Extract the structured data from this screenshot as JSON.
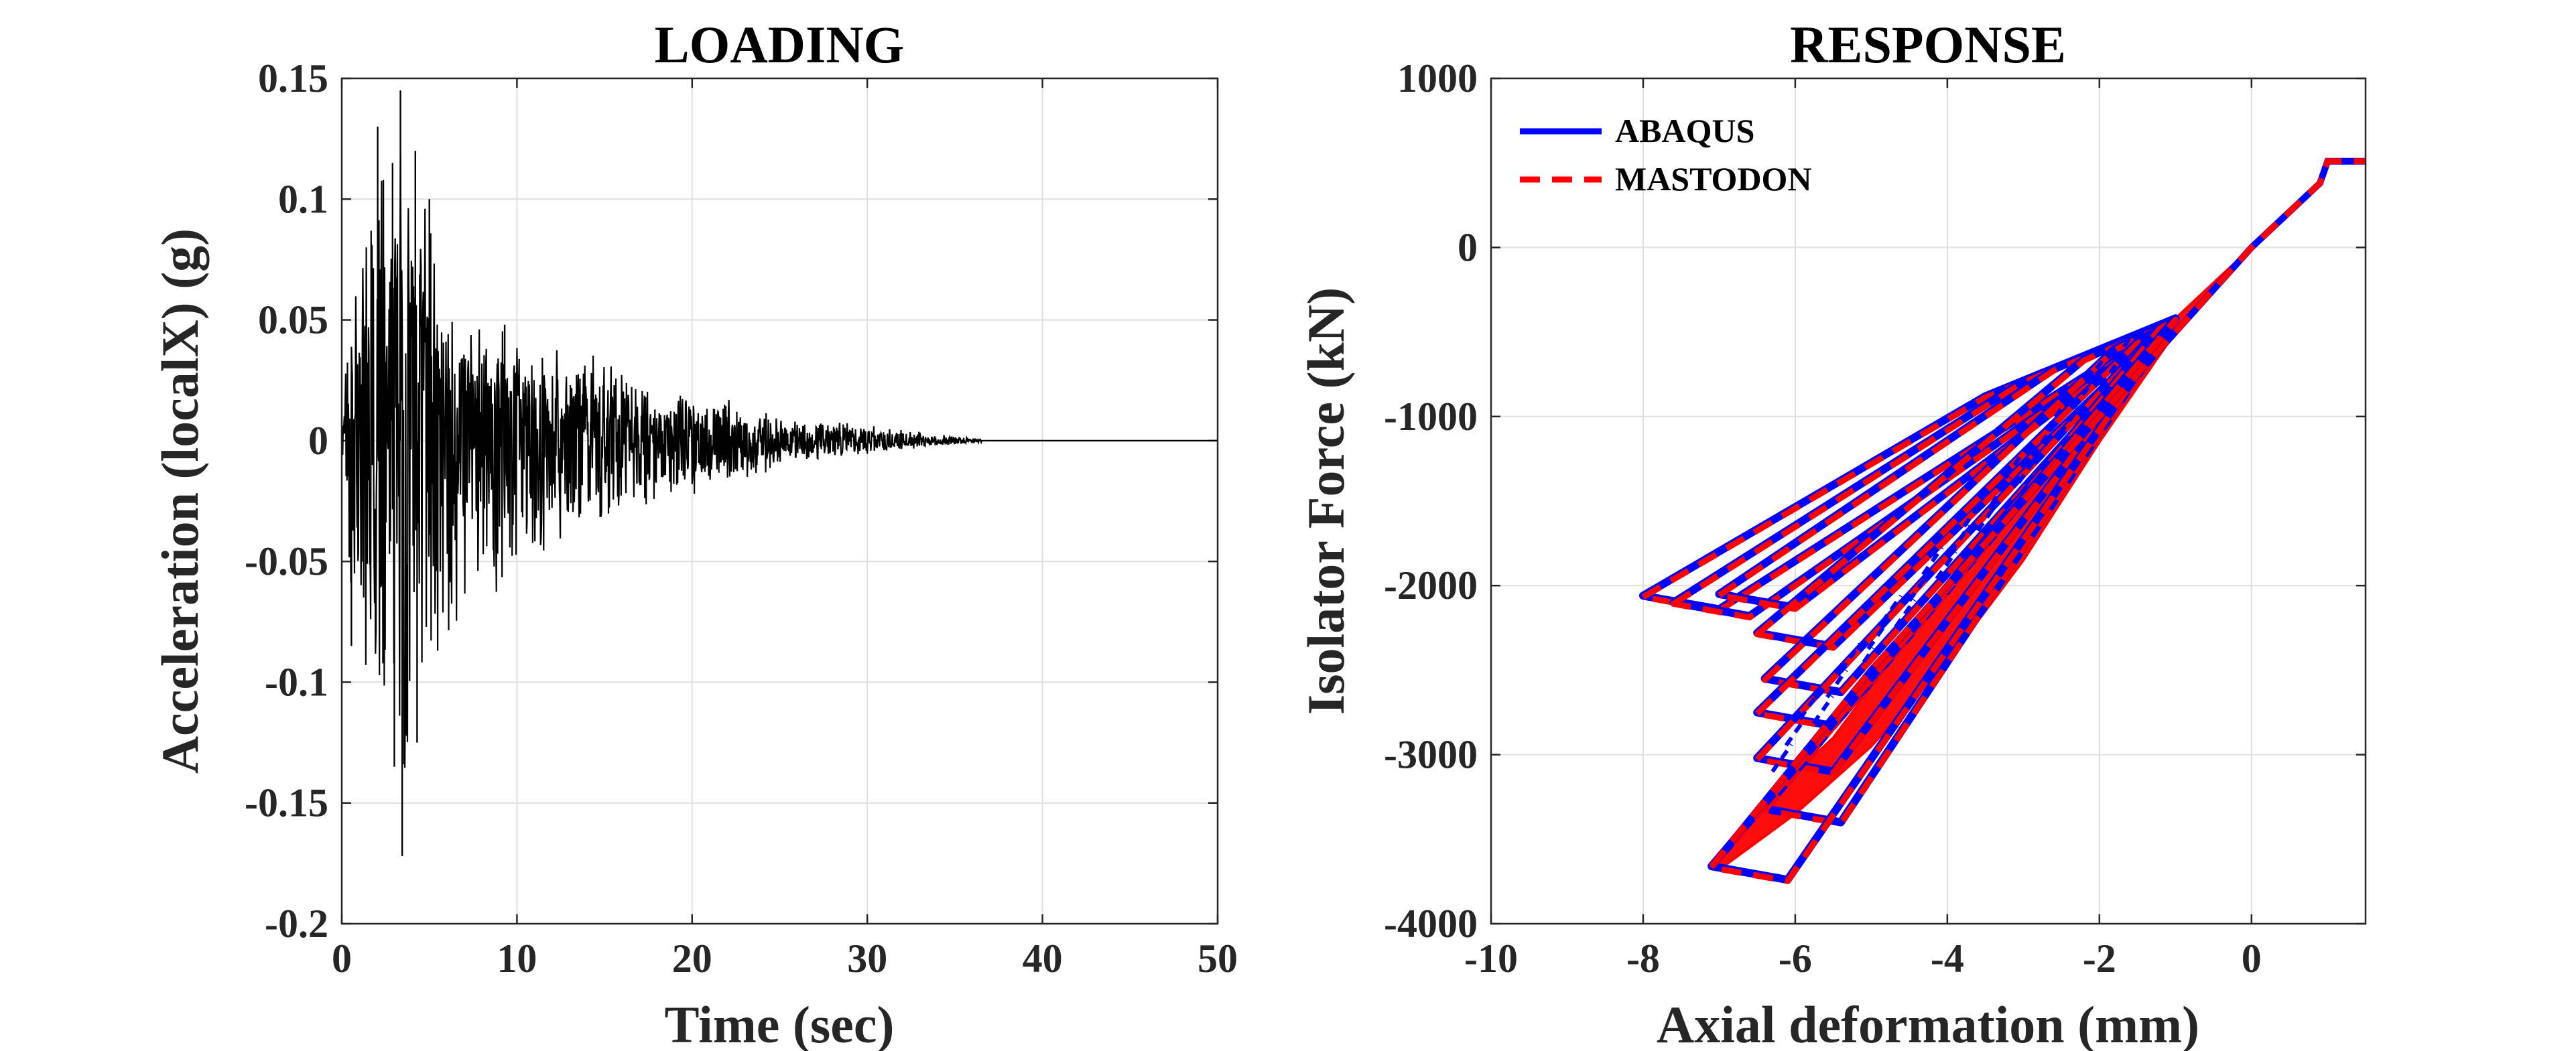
{
  "chart_data": [
    {
      "type": "line",
      "title": "LOADING",
      "xlabel": "Time (sec)",
      "ylabel": "Acceleration (localX) (g)",
      "xlim": [
        0,
        50
      ],
      "ylim": [
        -0.2,
        0.15
      ],
      "xticks": [
        0,
        10,
        20,
        30,
        40,
        50
      ],
      "xtick_labels": [
        "0",
        "10",
        "20",
        "30",
        "40",
        "50"
      ],
      "yticks": [
        -0.2,
        -0.15,
        -0.1,
        -0.05,
        0,
        0.05,
        0.1,
        0.15
      ],
      "ytick_labels": [
        "-0.2",
        "-0.15",
        "-0.1",
        "-0.05",
        "0",
        "0.05",
        "0.1",
        "0.15"
      ],
      "grid": true,
      "line_color": "#000000",
      "envelope": {
        "t": [
          0,
          0.5,
          1,
          2,
          3,
          3.5,
          4,
          5,
          6,
          8,
          10,
          12,
          15,
          18,
          20,
          22,
          25,
          28,
          30,
          33,
          36,
          50
        ],
        "max": [
          0.0,
          0.07,
          0.07,
          0.13,
          0.115,
          0.145,
          0.12,
          0.1,
          0.06,
          0.05,
          0.047,
          0.04,
          0.035,
          0.02,
          0.02,
          0.018,
          0.01,
          0.008,
          0.007,
          0.004,
          0.001,
          0.0
        ],
        "min": [
          0.0,
          -0.085,
          -0.085,
          -0.11,
          -0.135,
          -0.172,
          -0.125,
          -0.1,
          -0.085,
          -0.07,
          -0.065,
          -0.045,
          -0.04,
          -0.03,
          -0.025,
          -0.02,
          -0.012,
          -0.008,
          -0.006,
          -0.003,
          -0.001,
          0.0
        ]
      }
    },
    {
      "type": "line",
      "title": "RESPONSE",
      "xlabel": "Axial deformation (mm)",
      "ylabel": "Isolator Force (kN)",
      "xlim": [
        -10,
        1.5
      ],
      "ylim": [
        -4000,
        1000
      ],
      "xticks": [
        -10,
        -8,
        -6,
        -4,
        -2,
        0
      ],
      "xtick_labels": [
        "-10",
        "-8",
        "-6",
        "-4",
        "-2",
        "0"
      ],
      "yticks": [
        -4000,
        -3000,
        -2000,
        -1000,
        0,
        1000
      ],
      "ytick_labels": [
        "-4000",
        "-3000",
        "-2000",
        "-1000",
        "0",
        "1000"
      ],
      "grid": true,
      "legend_position": "top-left",
      "series": [
        {
          "name": "ABAQUS",
          "color": "#0000ff",
          "style": "solid"
        },
        {
          "name": "MASTODON",
          "color": "#ff0000",
          "style": "dashed"
        }
      ],
      "loops": [
        {
          "x": -8.0,
          "y": -2060,
          "x2": -3.5,
          "y2": -880
        },
        {
          "x": -7.6,
          "y": -2100,
          "x2": -3.0,
          "y2": -790
        },
        {
          "x": -7.0,
          "y": -2050,
          "x2": -2.6,
          "y2": -720
        },
        {
          "x": -6.5,
          "y": -2280,
          "x2": -2.2,
          "y2": -660
        },
        {
          "x": -6.4,
          "y": -2550,
          "x2": -1.8,
          "y2": -600
        },
        {
          "x": -6.5,
          "y": -2750,
          "x2": -1.5,
          "y2": -560
        },
        {
          "x": -6.5,
          "y": -3020,
          "x2": -1.3,
          "y2": -520
        },
        {
          "x": -6.4,
          "y": -3320,
          "x2": -1.2,
          "y2": -470
        },
        {
          "x": -7.1,
          "y": -3660,
          "x2": -1.0,
          "y2": -420
        }
      ],
      "backbone": {
        "x": [
          -7.1,
          -5.0,
          -3.0,
          -1.0,
          0.0,
          0.9,
          1.0,
          1.5
        ],
        "y": [
          -3660,
          -2500,
          -1500,
          -500,
          0,
          380,
          510,
          510
        ]
      }
    }
  ]
}
